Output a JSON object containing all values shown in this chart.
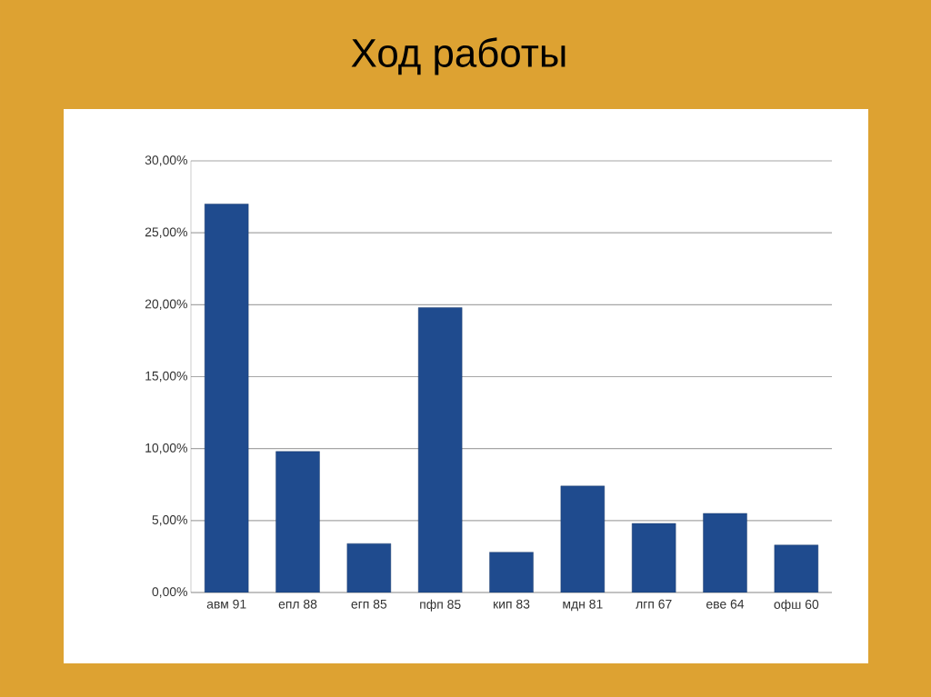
{
  "chart_data": {
    "type": "bar",
    "title": "Ход работы",
    "categories": [
      "авм 91",
      "епл 88",
      "егп 85",
      "пфп 85",
      "кип 83",
      "мдн 81",
      "лгп 67",
      "еве 64",
      "офш 60"
    ],
    "values": [
      27,
      9.8,
      3.4,
      19.8,
      2.8,
      7.4,
      4.8,
      5.5,
      3.3
    ],
    "color": "#1f4b8e",
    "ylim": [
      0,
      30
    ],
    "yticks": [
      {
        "value": 0,
        "label": "0,00%"
      },
      {
        "value": 5,
        "label": "5,00%"
      },
      {
        "value": 10,
        "label": "10,00%"
      },
      {
        "value": 15,
        "label": "15,00%"
      },
      {
        "value": 20,
        "label": "20,00%"
      },
      {
        "value": 25,
        "label": "25,00%"
      },
      {
        "value": 30,
        "label": "30,00%"
      }
    ],
    "grid": "y"
  }
}
